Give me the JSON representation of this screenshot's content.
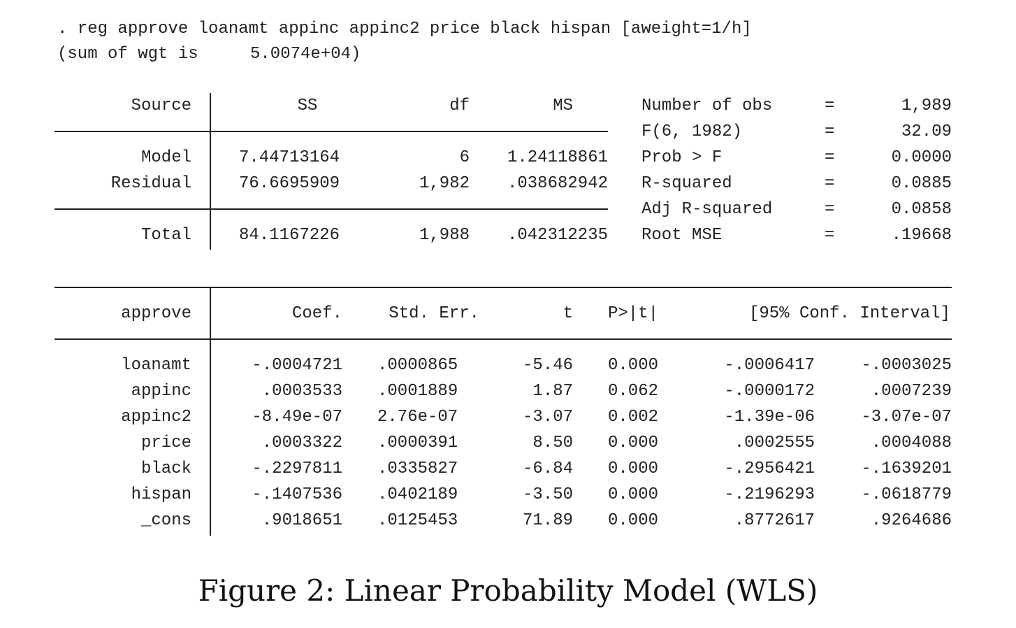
{
  "command": {
    "line": ". reg approve loanamt appinc appinc2 price black hispan [aweight=1/h]",
    "sum_label": "(sum of wgt is",
    "sum_value": "5.0074e+04)"
  },
  "anova": {
    "headers": {
      "source": "Source",
      "ss": "SS",
      "df": "df",
      "ms": "MS"
    },
    "rows": [
      {
        "source": "Model",
        "ss": "7.44713164",
        "df": "6",
        "ms": "1.24118861"
      },
      {
        "source": "Residual",
        "ss": "76.6695909",
        "df": "1,982",
        "ms": ".038682942"
      },
      {
        "source": "Total",
        "ss": "84.1167226",
        "df": "1,988",
        "ms": ".042312235"
      }
    ]
  },
  "stats": [
    {
      "label": "Number of obs",
      "eq": "=",
      "value": "1,989"
    },
    {
      "label": "F(6, 1982)",
      "eq": "=",
      "value": "32.09"
    },
    {
      "label": "Prob > F",
      "eq": "=",
      "value": "0.0000"
    },
    {
      "label": "R-squared",
      "eq": "=",
      "value": "0.0885"
    },
    {
      "label": "Adj R-squared",
      "eq": "=",
      "value": "0.0858"
    },
    {
      "label": "Root MSE",
      "eq": "=",
      "value": ".19668"
    }
  ],
  "coef": {
    "headers": {
      "dep": "approve",
      "coef": "Coef.",
      "se": "Std. Err.",
      "t": "t",
      "p": "P>|t|",
      "ci": "[95% Conf. Interval]"
    },
    "rows": [
      {
        "var": "loanamt",
        "coef": "-.0004721",
        "se": ".0000865",
        "t": "-5.46",
        "p": "0.000",
        "lo": "-.0006417",
        "hi": "-.0003025"
      },
      {
        "var": "appinc",
        "coef": ".0003533",
        "se": ".0001889",
        "t": "1.87",
        "p": "0.062",
        "lo": "-.0000172",
        "hi": ".0007239"
      },
      {
        "var": "appinc2",
        "coef": "-8.49e-07",
        "se": "2.76e-07",
        "t": "-3.07",
        "p": "0.002",
        "lo": "-1.39e-06",
        "hi": "-3.07e-07"
      },
      {
        "var": "price",
        "coef": ".0003322",
        "se": ".0000391",
        "t": "8.50",
        "p": "0.000",
        "lo": ".0002555",
        "hi": ".0004088"
      },
      {
        "var": "black",
        "coef": "-.2297811",
        "se": ".0335827",
        "t": "-6.84",
        "p": "0.000",
        "lo": "-.2956421",
        "hi": "-.1639201"
      },
      {
        "var": "hispan",
        "coef": "-.1407536",
        "se": ".0402189",
        "t": "-3.50",
        "p": "0.000",
        "lo": "-.2196293",
        "hi": "-.0618779"
      },
      {
        "var": "_cons",
        "coef": ".9018651",
        "se": ".0125453",
        "t": "71.89",
        "p": "0.000",
        "lo": ".8772617",
        "hi": ".9264686"
      }
    ]
  },
  "caption": "Figure 2: Linear Probability Model (WLS)"
}
